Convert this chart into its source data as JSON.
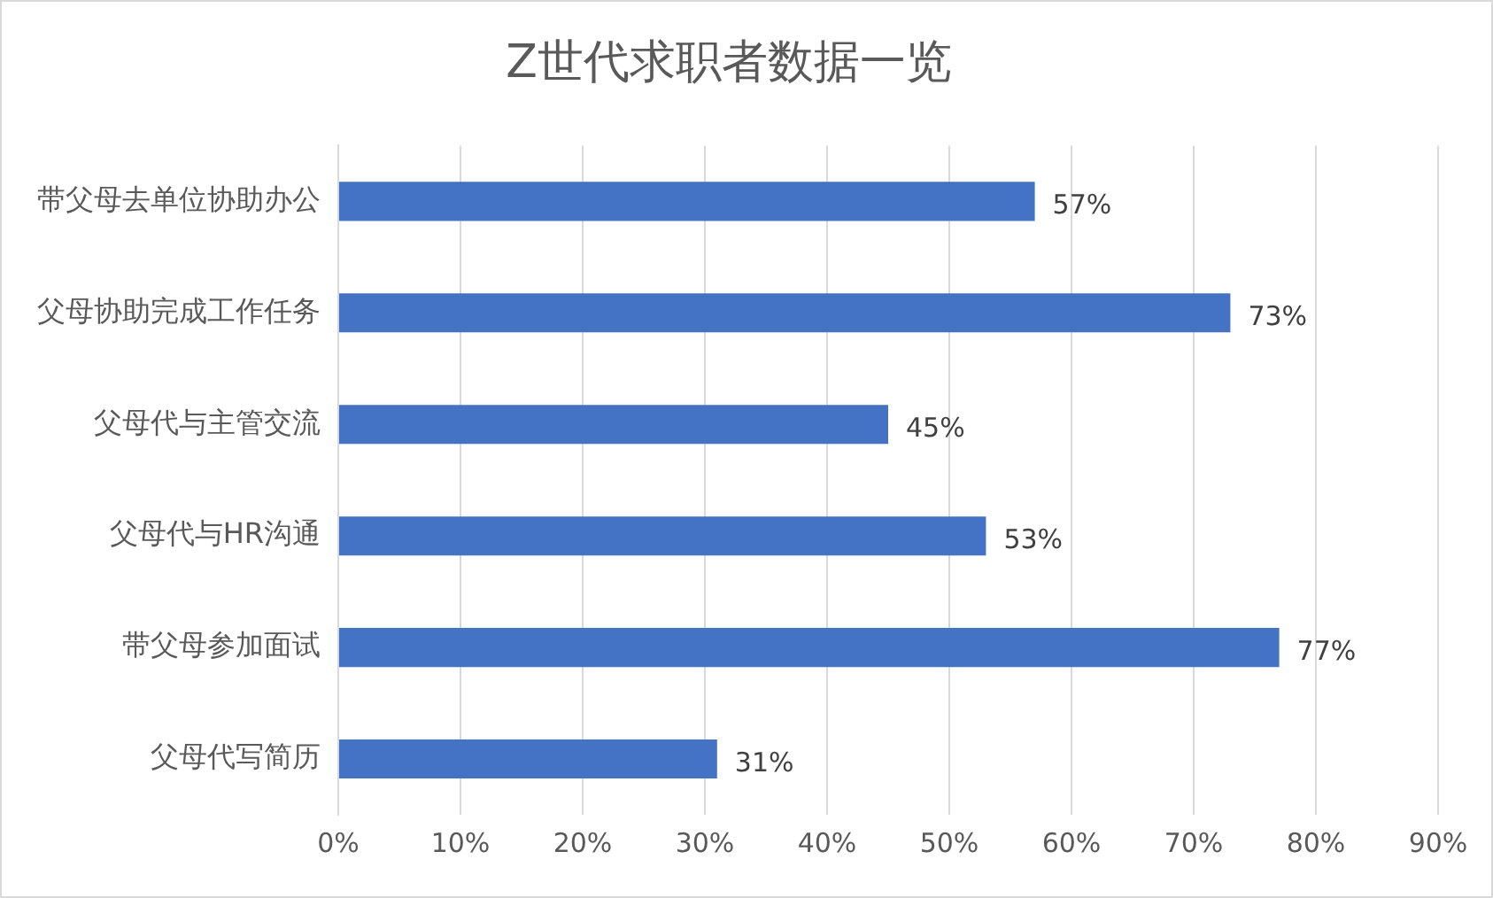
{
  "chart_data": {
    "type": "bar",
    "orientation": "horizontal",
    "title": "Z世代求职者数据一览",
    "categories": [
      "带父母去单位协助办公",
      "父母协助完成工作任务",
      "父母代与主管交流",
      "父母代与HR沟通",
      "带父母参加面试",
      "父母代写简历"
    ],
    "values": [
      57,
      73,
      45,
      53,
      77,
      31
    ],
    "value_labels": [
      "57%",
      "73%",
      "45%",
      "53%",
      "77%",
      "31%"
    ],
    "color": "#4472c4",
    "xlim": [
      0,
      90
    ],
    "xticks": [
      {
        "value": 0,
        "label": "0%"
      },
      {
        "value": 10,
        "label": "10%"
      },
      {
        "value": 20,
        "label": "20%"
      },
      {
        "value": 30,
        "label": "30%"
      },
      {
        "value": 40,
        "label": "40%"
      },
      {
        "value": 50,
        "label": "50%"
      },
      {
        "value": 60,
        "label": "60%"
      },
      {
        "value": 70,
        "label": "70%"
      },
      {
        "value": 80,
        "label": "80%"
      },
      {
        "value": 90,
        "label": "90%"
      }
    ],
    "grid": "x",
    "legend": false
  }
}
